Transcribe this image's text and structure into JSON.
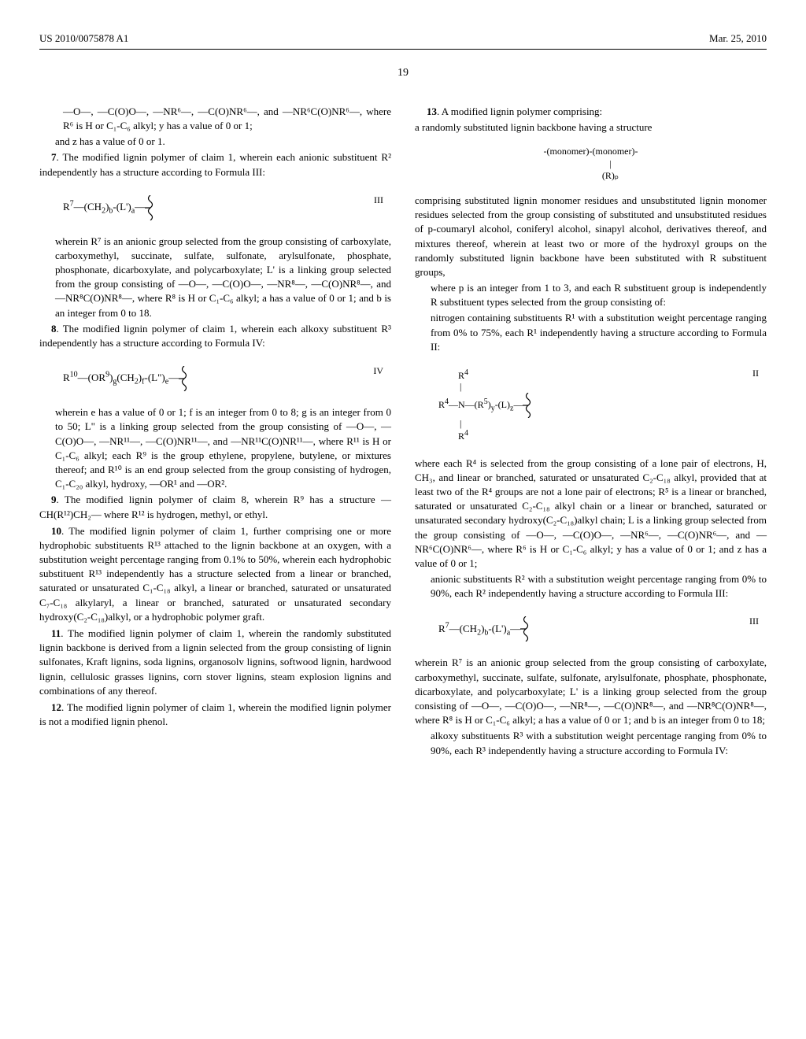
{
  "header": {
    "pub_number": "US 2010/0075878 A1",
    "date": "Mar. 25, 2010"
  },
  "page_number": "19",
  "col1": {
    "claim6_cont": "—O—, —C(O)O—, —NR⁶—, —C(O)NR⁶—, and —NR⁶C(O)NR⁶—, where R⁶ is H or C₁-C₆ alkyl; y has a value of 0 or 1;",
    "claim6_z": "and z has a value of 0 or 1.",
    "claim7_lead": "7. The modified lignin polymer of claim 1, wherein each anionic substituent R² independently has a structure according to Formula III:",
    "formula3_label": "III",
    "formula3": "R⁷—(CH₂)ₘ-(L')ₐ—",
    "claim7_body": "wherein R⁷ is an anionic group selected from the group consisting of carboxylate, carboxymethyl, succinate, sulfate, sulfonate, arylsulfonate, phosphate, phosphonate, dicarboxylate, and polycarboxylate; L' is a linking group selected from the group consisting of —O—, —C(O)O—, —NR⁸—, —C(O)NR⁸—, and —NR⁸C(O)NR⁸—, where R⁸ is H or C₁-C₆ alkyl; a has a value of 0 or 1; and b is an integer from 0 to 18.",
    "claim8_lead": "8. The modified lignin polymer of claim 1, wherein each alkoxy substituent R³ independently has a structure according to Formula IV:",
    "formula4_label": "IV",
    "formula4": "R¹⁰—(OR⁹)ₘ(CH₂)ₐ-(L\")ₑ—",
    "claim8_body": "wherein e has a value of 0 or 1; f is an integer from 0 to 8; g is an integer from 0 to 50; L\" is a linking group selected from the group consisting of —O—, —C(O)O—, —NR¹¹—, —C(O)NR¹¹—, and —NR¹¹C(O)NR¹¹—, where R¹¹ is H or C₁-C₆ alkyl; each R⁹ is the group ethylene, propylene, butylene, or mixtures thereof; and R¹⁰ is an end group selected from the group consisting of hydrogen, C₁-C₂₀ alkyl, hydroxy, —OR¹ and —OR².",
    "claim9": "9. The modified lignin polymer of claim 8, wherein R⁹ has a structure —CH(R¹²)CH₂— where R¹² is hydrogen, methyl, or ethyl.",
    "claim10": "10. The modified lignin polymer of claim 1, further comprising one or more hydrophobic substituents R¹³ attached to the lignin backbone at an oxygen, with a substitution weight percentage ranging from 0.1% to 50%, wherein each hydrophobic substituent R¹³ independently has a structure selected from a linear or branched, saturated or unsaturated C₁-C₁₈ alkyl, a linear or branched, saturated or unsaturated C₇-C₁₈ alkylaryl, a linear or branched, saturated or unsaturated secondary hydroxy(C₂-C₁₈)alkyl, or a hydrophobic polymer graft.",
    "claim11": "11. The modified lignin polymer of claim 1, wherein the randomly substituted lignin backbone is derived from a lignin selected from the group consisting of lignin sulfonates, Kraft lignins, soda lignins, organosolv lignins, softwood lignin, hardwood lignin, cellulosic grasses lignins, corn stover lignins, steam explosion lignins and combinations of any thereof.",
    "claim12": "12. The modified lignin polymer of claim 1, wherein the modified lignin polymer is not a modified lignin phenol."
  },
  "col2": {
    "claim13_lead": "13. A modified lignin polymer comprising:",
    "claim13_line2": "a randomly substituted lignin backbone having a structure",
    "monomer_top": "-(monomer)-(monomer)-",
    "monomer_mid": "|",
    "monomer_bot": "(R)ₚ",
    "claim13_body1": "comprising substituted lignin monomer residues and unsubstituted lignin monomer residues selected from the group consisting of substituted and unsubstituted residues of p-coumaryl alcohol, coniferyl alcohol, sinapyl alcohol, derivatives thereof, and mixtures thereof, wherein at least two or more of the hydroxyl groups on the randomly substituted lignin backbone have been substituted with R substituent groups,",
    "claim13_body2": "where p is an integer from 1 to 3, and each R substituent group is independently R substituent types selected from the group consisting of:",
    "claim13_body3": "nitrogen containing substituents R¹ with a substitution weight percentage ranging from 0% to 75%, each R¹ independently having a structure according to Formula II:",
    "formula2_label": "II",
    "claim13_body4": "where each R⁴ is selected from the group consisting of a lone pair of electrons, H, CH₃, and linear or branched, saturated or unsaturated C₂-C₁₈ alkyl, provided that at least two of the R⁴ groups are not a lone pair of electrons; R⁵ is a linear or branched, saturated or unsaturated C₂-C₁₈ alkyl chain or a linear or branched, saturated or unsaturated secondary hydroxy(C₂-C₁₈)alkyl chain; L is a linking group selected from the group consisting of —O—, —C(O)O—, —NR⁶—, —C(O)NR⁶—, and —NR⁶C(O)NR⁶—, where R⁶ is H or C₁-C₆ alkyl; y has a value of 0 or 1; and z has a value of 0 or 1;",
    "claim13_body5": "anionic substituents R² with a substitution weight percentage ranging from 0% to 90%, each R² independently having a structure according to Formula III:",
    "formula3b_label": "III",
    "formula3b": "R⁷—(CH₂)ₘ-(L')ₐ—",
    "claim13_body6": "wherein R⁷ is an anionic group selected from the group consisting of carboxylate, carboxymethyl, succinate, sulfate, sulfonate, arylsulfonate, phosphate, phosphonate, dicarboxylate, and polycarboxylate; L' is a linking group selected from the group consisting of —O—, —C(O)O—, —NR⁸—, —C(O)NR⁸—, and —NR⁸C(O)NR⁸—, where R⁸ is H or C₁-C₆ alkyl; a has a value of 0 or 1; and b is an integer from 0 to 18;",
    "claim13_body7": "alkoxy substituents R³ with a substitution weight percentage ranging from 0% to 90%, each R³ independently having a structure according to Formula IV:"
  }
}
